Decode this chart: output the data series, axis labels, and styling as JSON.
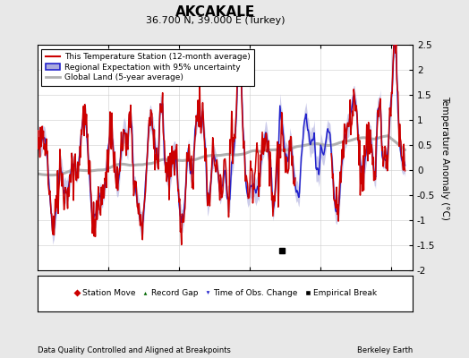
{
  "title": "AKCAKALE",
  "subtitle": "36.700 N, 39.000 E (Turkey)",
  "ylabel": "Temperature Anomaly (°C)",
  "xlabel_left": "Data Quality Controlled and Aligned at Breakpoints",
  "xlabel_right": "Berkeley Earth",
  "ylim": [
    -2.0,
    2.5
  ],
  "yticks": [
    -2.0,
    -1.5,
    -1.0,
    -0.5,
    0.0,
    0.5,
    1.0,
    1.5,
    2.0,
    2.5
  ],
  "xlim": [
    1950,
    2003
  ],
  "xticks": [
    1960,
    1970,
    1980,
    1990,
    2000
  ],
  "start_year": 1950,
  "end_year": 2001,
  "background_color": "#e8e8e8",
  "plot_bg_color": "#ffffff",
  "regional_color": "#2222cc",
  "regional_fill_color": "#aaaadd",
  "station_color": "#cc0000",
  "global_color": "#b0b0b0",
  "empirical_break_year": 1984.5,
  "empirical_break_value": -1.6,
  "legend_items": [
    {
      "label": "This Temperature Station (12-month average)",
      "color": "#cc0000",
      "lw": 1.5
    },
    {
      "label": "Regional Expectation with 95% uncertainty",
      "color": "#2222cc",
      "lw": 1.5
    },
    {
      "label": "Global Land (5-year average)",
      "color": "#b0b0b0",
      "lw": 2.0
    }
  ],
  "marker_items": [
    {
      "label": "Station Move",
      "marker": "D",
      "color": "#cc0000"
    },
    {
      "label": "Record Gap",
      "marker": "^",
      "color": "#006600"
    },
    {
      "label": "Time of Obs. Change",
      "marker": "v",
      "color": "#2222cc"
    },
    {
      "label": "Empirical Break",
      "marker": "s",
      "color": "#000000"
    }
  ]
}
